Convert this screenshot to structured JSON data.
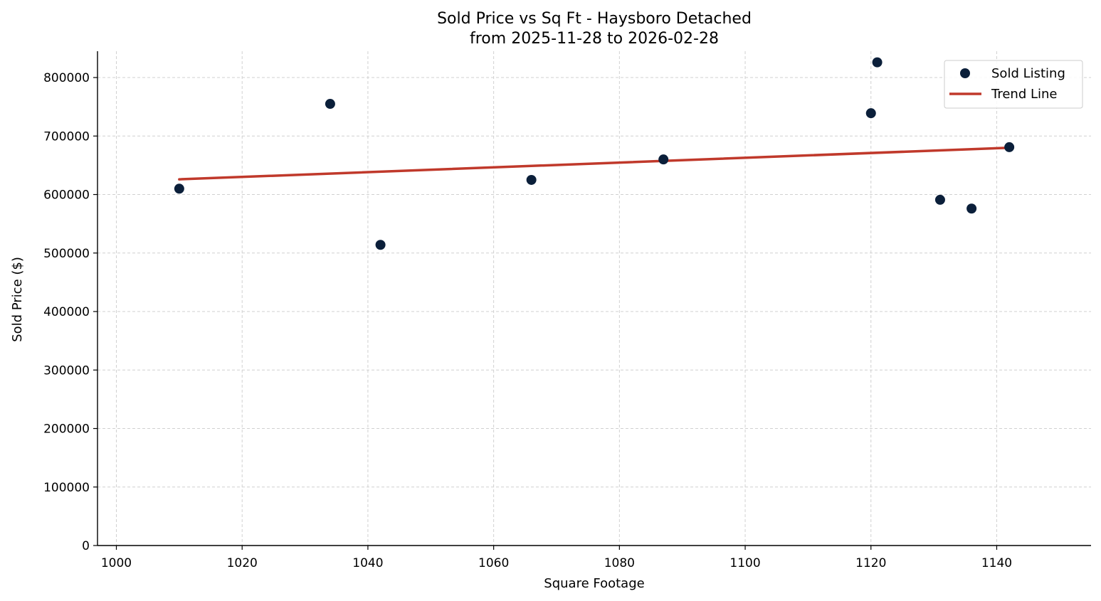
{
  "chart_data": {
    "type": "scatter",
    "title": "Sold Price vs Sq Ft - Haysboro Detached",
    "subtitle": "from 2025-11-28 to 2026-02-28",
    "xlabel": "Square Footage",
    "ylabel": "Sold Price ($)",
    "xlim": [
      997,
      1155
    ],
    "ylim": [
      0,
      845000
    ],
    "xticks": [
      1000,
      1020,
      1040,
      1060,
      1080,
      1100,
      1120,
      1140
    ],
    "yticks": [
      0,
      100000,
      200000,
      300000,
      400000,
      500000,
      600000,
      700000,
      800000
    ],
    "grid": true,
    "legend_position": "top-right",
    "series": [
      {
        "name": "Sold Listing",
        "kind": "scatter",
        "color": "#0b1f3a",
        "x": [
          1010,
          1034,
          1042,
          1066,
          1087,
          1120,
          1121,
          1131,
          1136,
          1142
        ],
        "y": [
          610000,
          755000,
          514000,
          625000,
          660000,
          739000,
          826000,
          591000,
          576000,
          681000
        ]
      },
      {
        "name": "Trend Line",
        "kind": "line",
        "color": "#c0392b",
        "x": [
          1010,
          1142
        ],
        "y": [
          626000,
          680000
        ]
      }
    ]
  }
}
